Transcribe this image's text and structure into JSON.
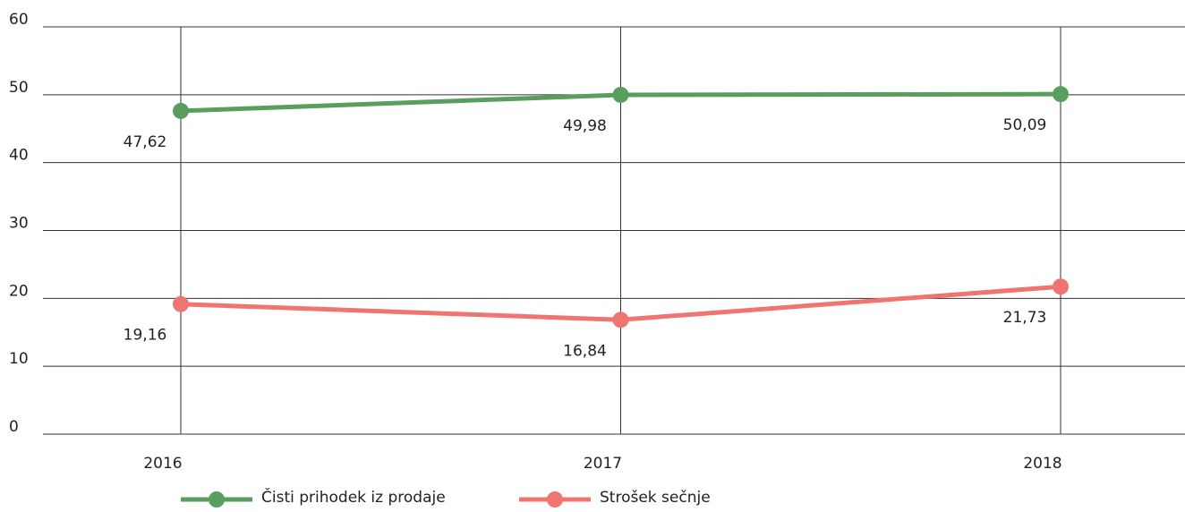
{
  "chart_data": {
    "type": "line",
    "categories": [
      "2016",
      "2017",
      "2018"
    ],
    "series": [
      {
        "name": "Čisti prihodek iz prodaje",
        "color": "#5a9e5f",
        "values": [
          47.62,
          49.98,
          50.09
        ],
        "value_labels": [
          "47,62",
          "49,98",
          "50,09"
        ]
      },
      {
        "name": "Strošek sečnje",
        "color": "#f07470",
        "values": [
          19.16,
          16.84,
          21.73
        ],
        "value_labels": [
          "19,16",
          "16,84",
          "21,73"
        ]
      }
    ],
    "ylim": [
      0,
      60
    ],
    "yticks": [
      0,
      10,
      20,
      30,
      40,
      50,
      60
    ],
    "grid": true,
    "legend": "bottom"
  }
}
